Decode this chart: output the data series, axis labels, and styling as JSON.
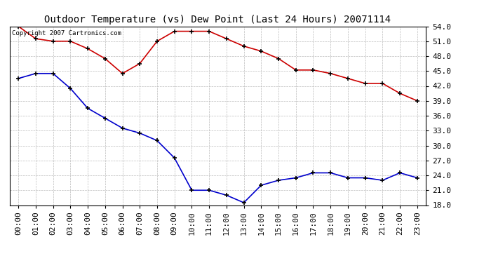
{
  "title": "Outdoor Temperature (vs) Dew Point (Last 24 Hours) 20071114",
  "copyright_text": "Copyright 2007 Cartronics.com",
  "hours": [
    0,
    1,
    2,
    3,
    4,
    5,
    6,
    7,
    8,
    9,
    10,
    11,
    12,
    13,
    14,
    15,
    16,
    17,
    18,
    19,
    20,
    21,
    22,
    23
  ],
  "temp_red": [
    54.0,
    51.5,
    51.0,
    51.0,
    49.5,
    47.5,
    44.5,
    46.5,
    51.0,
    53.0,
    53.0,
    53.0,
    51.5,
    50.0,
    49.0,
    47.5,
    45.2,
    45.2,
    44.5,
    43.5,
    42.5,
    42.5,
    40.5,
    39.0
  ],
  "temp_blue": [
    43.5,
    44.5,
    44.5,
    41.5,
    37.5,
    35.5,
    33.5,
    32.5,
    31.0,
    27.5,
    21.0,
    21.0,
    20.0,
    18.5,
    22.0,
    23.0,
    23.5,
    24.5,
    24.5,
    23.5,
    23.5,
    23.0,
    24.5,
    23.5
  ],
  "ylim": [
    18.0,
    54.0
  ],
  "yticks": [
    18.0,
    21.0,
    24.0,
    27.0,
    30.0,
    33.0,
    36.0,
    39.0,
    42.0,
    45.0,
    48.0,
    51.0,
    54.0
  ],
  "red_color": "#cc0000",
  "blue_color": "#0000cc",
  "bg_color": "#ffffff",
  "grid_color": "#bbbbbb",
  "title_fontsize": 10,
  "tick_fontsize": 8,
  "copyright_fontsize": 6.5,
  "marker": "+"
}
